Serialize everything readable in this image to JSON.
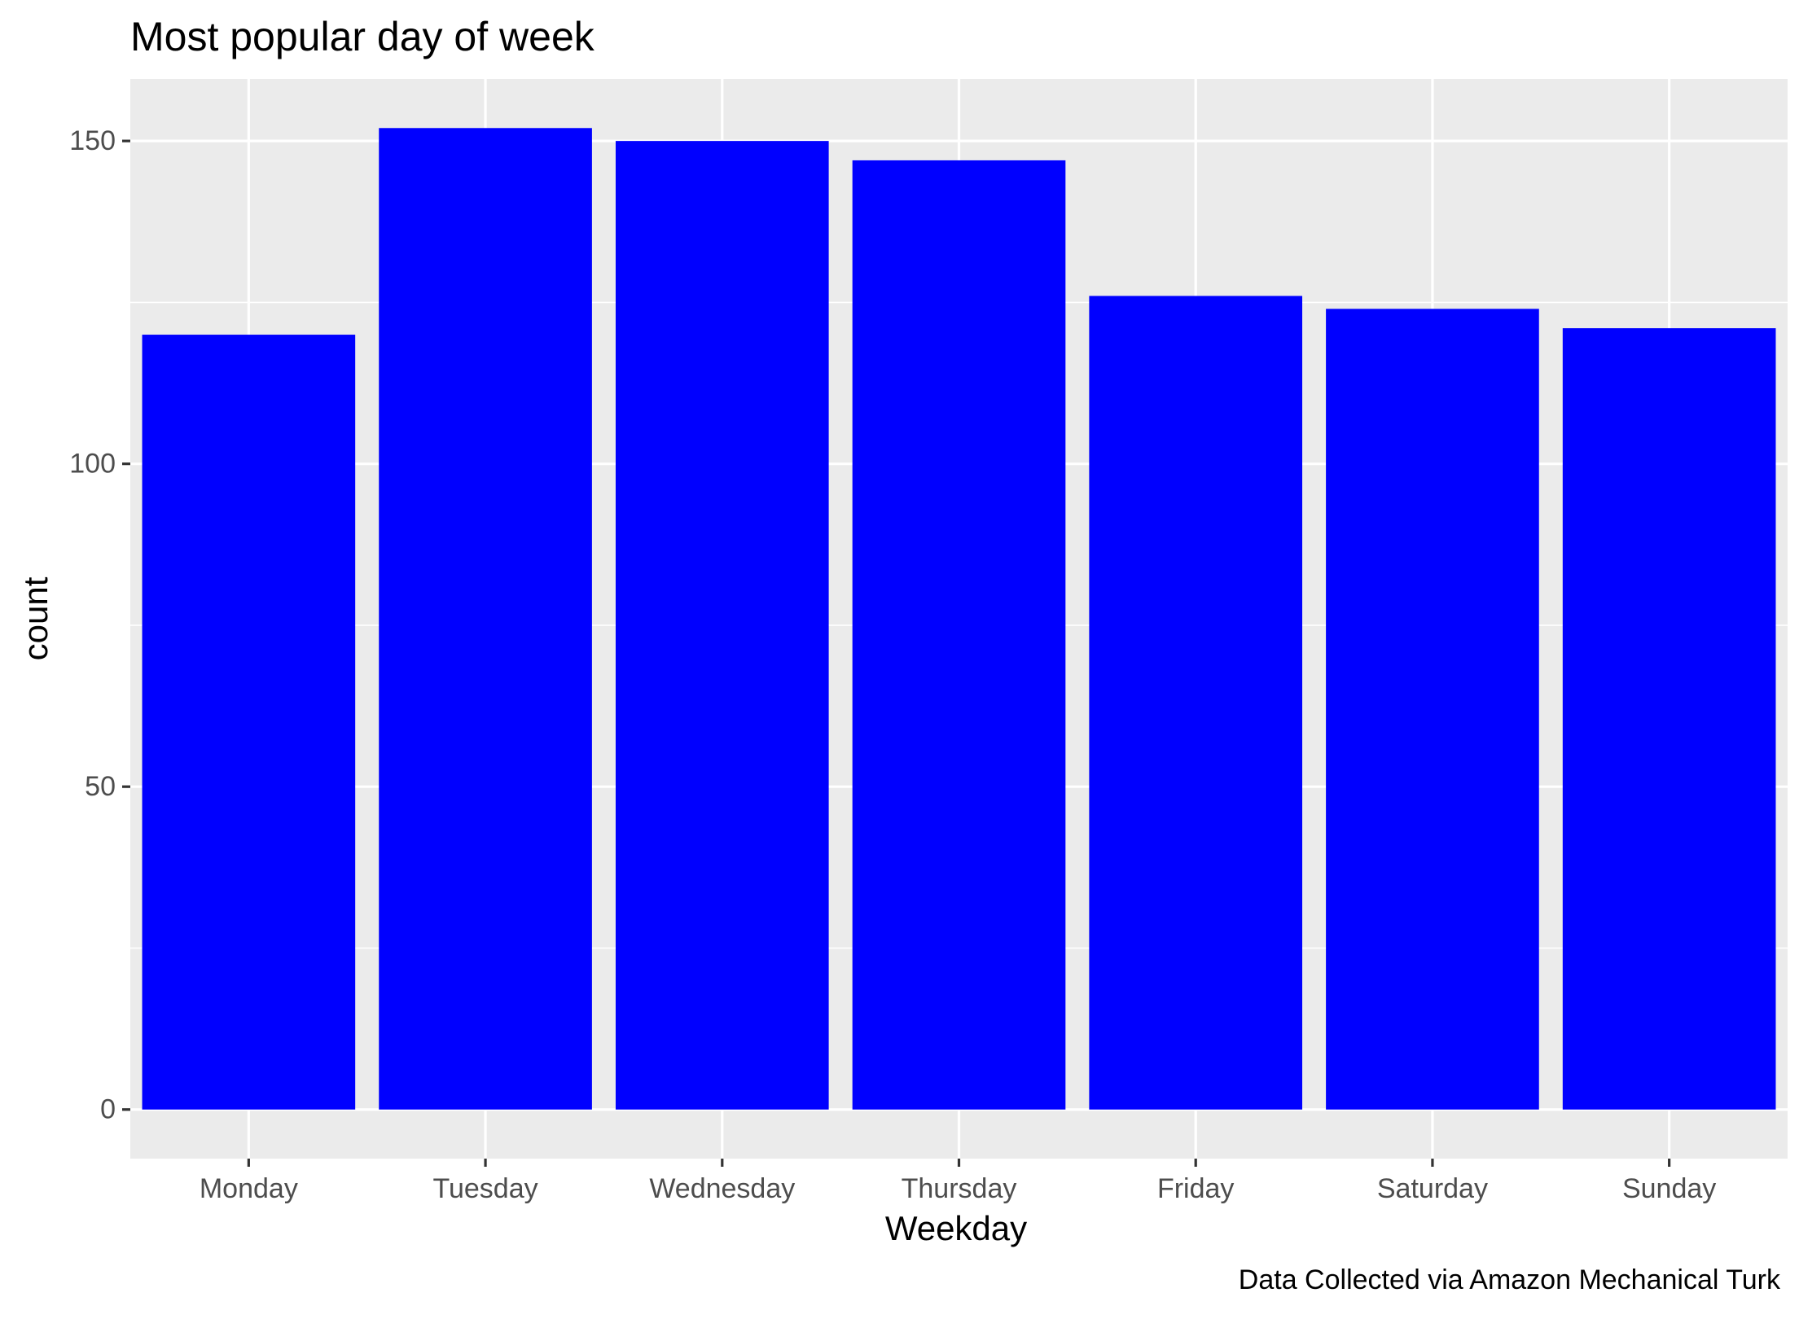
{
  "chart_data": {
    "type": "bar",
    "title": "Most popular day of week",
    "xlabel": "Weekday",
    "ylabel": "count",
    "caption": "Data Collected via Amazon Mechanical Turk",
    "categories": [
      "Monday",
      "Tuesday",
      "Wednesday",
      "Thursday",
      "Friday",
      "Saturday",
      "Sunday"
    ],
    "values": [
      120,
      152,
      150,
      147,
      126,
      124,
      121
    ],
    "ylim": [
      -7.6,
      159.6
    ],
    "yticks": [
      0,
      50,
      100,
      150
    ],
    "ytick_labels": [
      "0",
      "50",
      "100",
      "150"
    ],
    "grid": true,
    "colors": {
      "bar": "#0000ff",
      "panel_background": "#ebebeb",
      "grid": "#ffffff"
    }
  }
}
